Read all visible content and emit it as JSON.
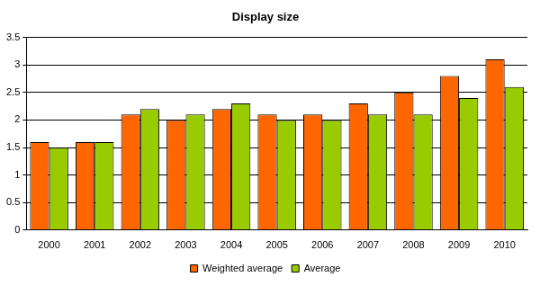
{
  "chart_data": {
    "type": "bar",
    "title": "Display size",
    "categories": [
      "2000",
      "2001",
      "2002",
      "2003",
      "2004",
      "2005",
      "2006",
      "2007",
      "2008",
      "2009",
      "2010"
    ],
    "series": [
      {
        "name": "Weighted average",
        "color": "#ff6600",
        "values": [
          1.6,
          1.6,
          2.1,
          2.0,
          2.2,
          2.1,
          2.1,
          2.3,
          2.5,
          2.8,
          3.1
        ]
      },
      {
        "name": "Average",
        "color": "#99cc00",
        "values": [
          1.5,
          1.6,
          2.2,
          2.1,
          2.3,
          2.0,
          2.0,
          2.1,
          2.1,
          2.4,
          2.6
        ]
      }
    ],
    "ylim": [
      0,
      3.5
    ],
    "yticks": [
      0,
      0.5,
      1,
      1.5,
      2,
      2.5,
      3,
      3.5
    ],
    "grid": true,
    "legend": "bottom"
  }
}
